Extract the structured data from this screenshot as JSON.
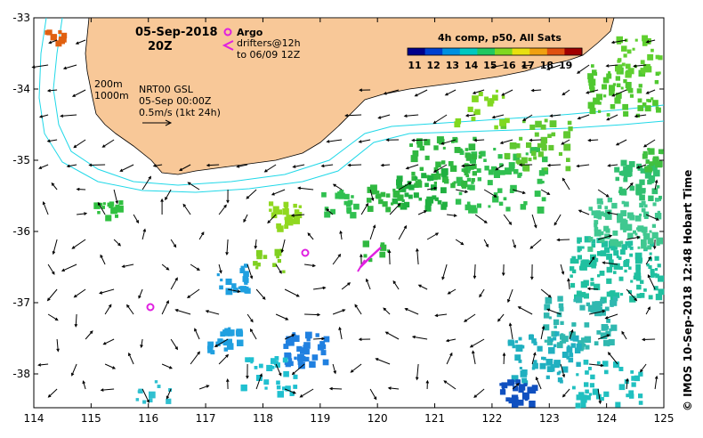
{
  "header": {
    "date": "05-Sep-2018",
    "time": "20Z"
  },
  "legend": {
    "argo_label": "Argo",
    "drifters_label": "drifters@12h",
    "drifters_range": "to 06/09 12Z",
    "argo_color": "#e020e0",
    "drifter_color": "#e020e0"
  },
  "notes": {
    "contour1": "200m",
    "contour2": "1000m",
    "product": "NRT00 GSL",
    "product_time": "05-Sep 00:00Z",
    "scale": "0.5m/s (1kt 24h)"
  },
  "colorbar": {
    "title": "4h comp, p50, All Sats",
    "ticks": [
      "11",
      "12",
      "13",
      "14",
      "15",
      "16",
      "17",
      "18",
      "19"
    ],
    "colors": [
      "#00008b",
      "#0040d0",
      "#0090e0",
      "#00c8c0",
      "#20c860",
      "#80d820",
      "#e8e010",
      "#f0a010",
      "#e05010",
      "#a00000"
    ]
  },
  "axes": {
    "x_ticks": [
      "114",
      "115",
      "116",
      "117",
      "118",
      "119",
      "120",
      "121",
      "122",
      "123",
      "124",
      "125"
    ],
    "y_ticks": [
      "-33",
      "-34",
      "-35",
      "-36",
      "-37",
      "-38"
    ]
  },
  "credit": "© IMOS 10-Sep-2018 12:48 Hobart Time",
  "colors": {
    "land": "#f8c898",
    "contour": "#20d8e8",
    "arrow": "#000000"
  }
}
